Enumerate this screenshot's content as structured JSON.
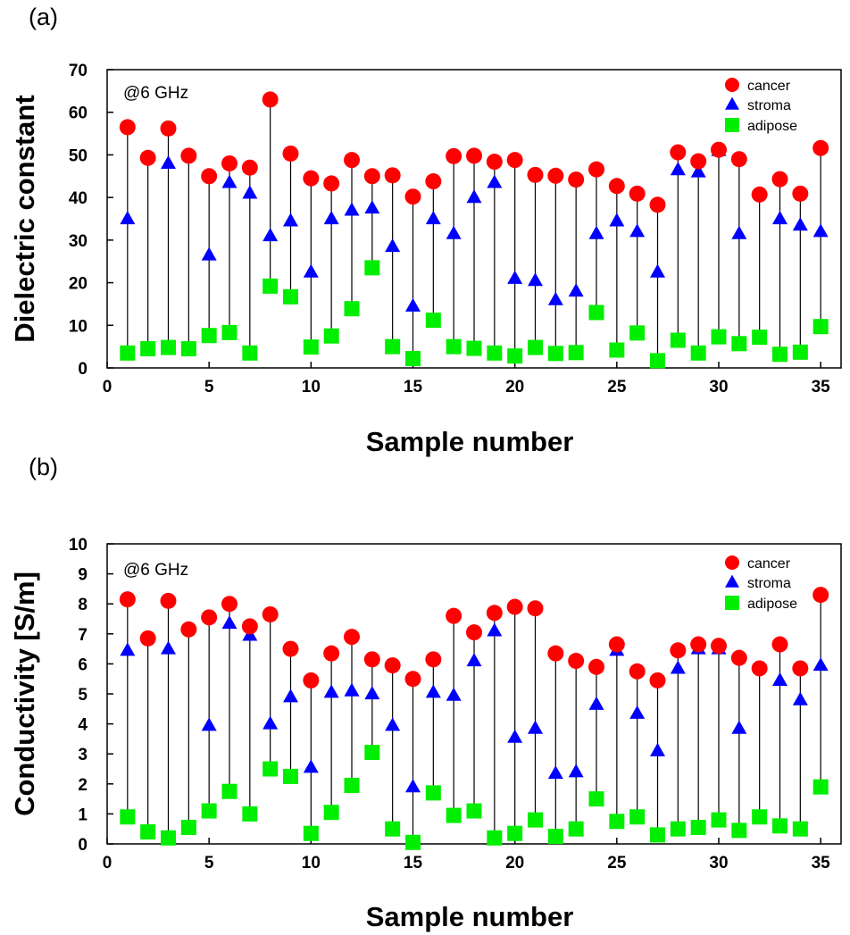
{
  "colors": {
    "cancer": "#ff0000",
    "stroma": "#0000ff",
    "adipose": "#00ee00",
    "stem": "#000000"
  },
  "chart_data": [
    {
      "panel_label": "(a)",
      "type": "scatter",
      "annotation": "@6 GHz",
      "xlabel": "Sample number",
      "ylabel": "Dielectric constant",
      "xlim": [
        0,
        36
      ],
      "ylim": [
        0,
        70
      ],
      "xticks": [
        0,
        5,
        10,
        15,
        20,
        25,
        30,
        35
      ],
      "yticks": [
        0,
        10,
        20,
        30,
        40,
        50,
        60,
        70
      ],
      "legend_position": "top-right",
      "x": [
        1,
        2,
        3,
        4,
        5,
        6,
        7,
        8,
        9,
        10,
        11,
        12,
        13,
        14,
        15,
        16,
        17,
        18,
        19,
        20,
        21,
        22,
        23,
        24,
        25,
        26,
        27,
        28,
        29,
        30,
        31,
        32,
        33,
        34,
        35
      ],
      "series": [
        {
          "name": "cancer",
          "marker": "circle",
          "values": [
            56.5,
            49.3,
            56.2,
            49.8,
            45,
            48,
            47,
            63,
            50.3,
            44.5,
            43.3,
            48.8,
            45,
            45.2,
            40.2,
            43.8,
            49.7,
            49.8,
            48.4,
            48.8,
            45.3,
            45.1,
            44.2,
            46.6,
            42.7,
            40.9,
            38.3,
            50.6,
            48.5,
            51.2,
            49,
            40.7,
            44.3,
            40.9,
            51.6
          ]
        },
        {
          "name": "stroma",
          "marker": "triangle",
          "values": [
            35,
            null,
            48,
            null,
            26.5,
            43.5,
            41,
            31,
            34.5,
            22.5,
            35,
            37,
            37.5,
            28.5,
            14.5,
            35,
            31.5,
            40,
            43.5,
            21,
            20.5,
            16,
            18,
            31.5,
            34.5,
            32,
            22.5,
            46.5,
            46,
            51,
            31.5,
            null,
            35,
            33.5,
            32
          ]
        },
        {
          "name": "adipose",
          "marker": "square",
          "values": [
            3.5,
            4.5,
            4.8,
            4.5,
            7.6,
            8.3,
            3.5,
            19.2,
            16.7,
            4.9,
            7.5,
            13.9,
            23.5,
            5,
            2.2,
            11.2,
            5,
            4.6,
            3.5,
            2.8,
            4.8,
            3.4,
            3.6,
            13,
            4.2,
            8.2,
            1.7,
            6.5,
            3.5,
            7.3,
            5.7,
            7.2,
            3.2,
            3.7,
            9.7
          ]
        }
      ]
    },
    {
      "panel_label": "(b)",
      "type": "scatter",
      "annotation": "@6 GHz",
      "xlabel": "Sample number",
      "ylabel": "Conductivity [S/m]",
      "xlim": [
        0,
        36
      ],
      "ylim": [
        0,
        10
      ],
      "xticks": [
        0,
        5,
        10,
        15,
        20,
        25,
        30,
        35
      ],
      "yticks": [
        0,
        1,
        2,
        3,
        4,
        5,
        6,
        7,
        8,
        9,
        10
      ],
      "legend_position": "top-right",
      "x": [
        1,
        2,
        3,
        4,
        5,
        6,
        7,
        8,
        9,
        10,
        11,
        12,
        13,
        14,
        15,
        16,
        17,
        18,
        19,
        20,
        21,
        22,
        23,
        24,
        25,
        26,
        27,
        28,
        29,
        30,
        31,
        32,
        33,
        34,
        35
      ],
      "series": [
        {
          "name": "cancer",
          "marker": "circle",
          "values": [
            8.15,
            6.85,
            8.1,
            7.15,
            7.55,
            8,
            7.25,
            7.65,
            6.5,
            5.45,
            6.35,
            6.9,
            6.15,
            5.95,
            5.5,
            6.15,
            7.6,
            7.05,
            7.7,
            7.9,
            7.85,
            6.35,
            6.1,
            5.9,
            6.65,
            5.75,
            5.45,
            6.45,
            6.65,
            6.6,
            6.2,
            5.85,
            6.65,
            5.85,
            8.3
          ]
        },
        {
          "name": "stroma",
          "marker": "triangle",
          "values": [
            6.45,
            null,
            6.5,
            null,
            3.95,
            7.35,
            6.95,
            4,
            4.9,
            2.55,
            5.05,
            5.1,
            5,
            3.95,
            1.9,
            5.05,
            4.95,
            6.1,
            7.1,
            3.55,
            3.85,
            2.35,
            2.4,
            4.65,
            6.45,
            4.35,
            3.1,
            5.85,
            6.5,
            6.5,
            3.85,
            null,
            5.45,
            4.8,
            5.95
          ]
        },
        {
          "name": "adipose",
          "marker": "square",
          "values": [
            0.9,
            0.4,
            0.2,
            0.55,
            1.1,
            1.75,
            1,
            2.5,
            2.25,
            0.35,
            1.05,
            1.95,
            3.05,
            0.5,
            0.05,
            1.7,
            0.95,
            1.1,
            0.2,
            0.35,
            0.8,
            0.25,
            0.5,
            1.5,
            0.75,
            0.9,
            0.3,
            0.5,
            0.55,
            0.8,
            0.45,
            0.9,
            0.6,
            0.5,
            1.9
          ]
        }
      ]
    }
  ]
}
